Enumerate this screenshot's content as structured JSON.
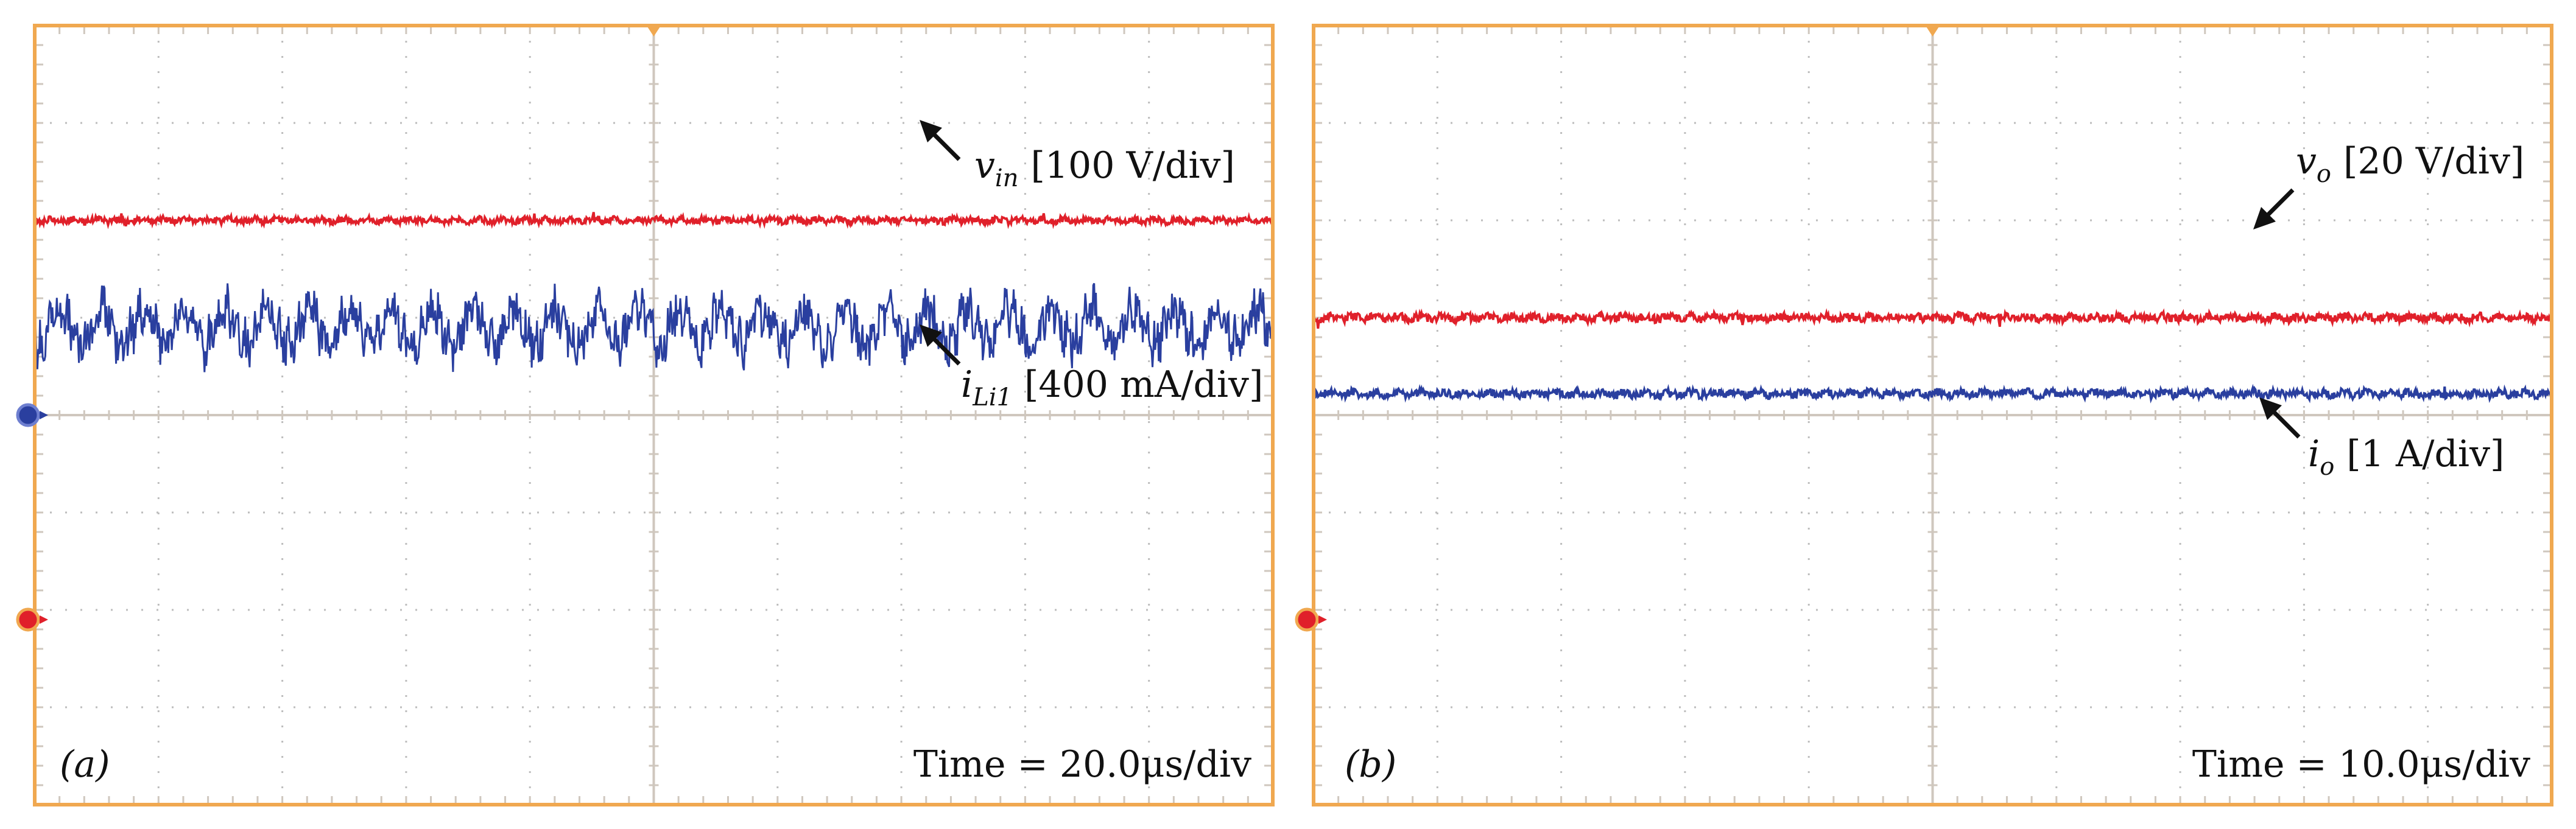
{
  "colors": {
    "frame": "#F0A850",
    "grid": "#CFC7BE",
    "dot": "#BDBDBD",
    "red": "#E0202A",
    "blue": "#2A3F9F",
    "arrow": "#111111"
  },
  "chart_data": [
    {
      "type": "line",
      "panel_label": "(a)",
      "time_label": "Time = 20.0μs/div",
      "time_per_div_us": 20.0,
      "x": {
        "divisions": 10,
        "range_div": [
          -5,
          5
        ]
      },
      "y": {
        "divisions": 8,
        "range_div": [
          -4,
          4
        ]
      },
      "markers": {
        "trigger": "top-center",
        "blue_ground_div": 0,
        "red_ground_div": -2
      },
      "series": [
        {
          "name": "v_in",
          "color": "red",
          "label_var": "v",
          "label_sub": "in",
          "label_scale": "[100 V/div]",
          "level_div": 2.0,
          "noise_div": 0.04,
          "ripple": "fine"
        },
        {
          "name": "i_Li1",
          "color": "blue",
          "label_var": "i",
          "label_sub": "Li1",
          "label_scale": "[400 mA/div]",
          "level_div": 0.9,
          "noise_div": 0.38,
          "ripple": "heavy"
        }
      ],
      "annotations": [
        {
          "target": "v_in",
          "text": "v_in [100 V/div]",
          "position": "below-right"
        },
        {
          "target": "i_Li1",
          "text": "i_Li1 [400 mA/div]",
          "position": "below-right"
        }
      ]
    },
    {
      "type": "line",
      "panel_label": "(b)",
      "time_label": "Time = 10.0μs/div",
      "time_per_div_us": 10.0,
      "x": {
        "divisions": 10,
        "range_div": [
          -5,
          5
        ]
      },
      "y": {
        "divisions": 8,
        "range_div": [
          -4,
          4
        ]
      },
      "markers": {
        "trigger": "top-center",
        "red_ground_div": -2
      },
      "series": [
        {
          "name": "v_o",
          "color": "red",
          "label_var": "v",
          "label_sub": "o",
          "label_scale": "[20 V/div]",
          "level_div": 1.0,
          "noise_div": 0.05,
          "ripple": "fine"
        },
        {
          "name": "i_o",
          "color": "blue",
          "label_var": "i",
          "label_sub": "o",
          "label_scale": "[1 A/div]",
          "level_div": 0.22,
          "noise_div": 0.05,
          "ripple": "fine"
        }
      ],
      "annotations": [
        {
          "target": "v_o",
          "text": "v_o [20 V/div]",
          "position": "above-right"
        },
        {
          "target": "i_o",
          "text": "i_o [1 A/div]",
          "position": "below-right"
        }
      ]
    }
  ]
}
